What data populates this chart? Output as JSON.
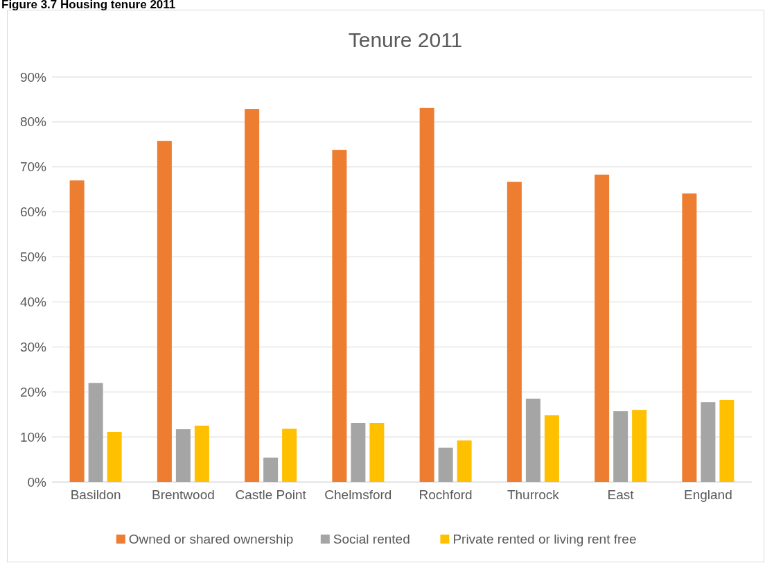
{
  "chart_data": {
    "type": "bar",
    "title": "Tenure 2011",
    "annotations": [
      "Figure 3.7 Housing tenure 2011"
    ],
    "categories": [
      "Basildon",
      "Brentwood",
      "Castle Point",
      "Chelmsford",
      "Rochford",
      "Thurrock",
      "East",
      "England"
    ],
    "series": [
      {
        "name": "Owned or shared ownership",
        "color": "#ed7d31",
        "values": [
          67,
          75.8,
          82.9,
          73.8,
          83.1,
          66.7,
          68.3,
          64.1
        ]
      },
      {
        "name": "Social rented",
        "color": "#a5a5a5",
        "values": [
          22,
          11.7,
          5.4,
          13.1,
          7.6,
          18.5,
          15.7,
          17.7
        ]
      },
      {
        "name": "Private rented or living rent free",
        "color": "#ffc000",
        "values": [
          11.1,
          12.5,
          11.8,
          13.1,
          9.2,
          14.8,
          16,
          18.2
        ]
      }
    ],
    "ylim": [
      0,
      90
    ],
    "yticks": [
      {
        "value": 0,
        "label": "0%"
      },
      {
        "value": 10,
        "label": "10%"
      },
      {
        "value": 20,
        "label": "20%"
      },
      {
        "value": 30,
        "label": "30%"
      },
      {
        "value": 40,
        "label": "40%"
      },
      {
        "value": 50,
        "label": "50%"
      },
      {
        "value": 60,
        "label": "60%"
      },
      {
        "value": 70,
        "label": "70%"
      },
      {
        "value": 80,
        "label": "80%"
      },
      {
        "value": 90,
        "label": "90%"
      }
    ],
    "grid": "y",
    "legend": "bottom"
  }
}
